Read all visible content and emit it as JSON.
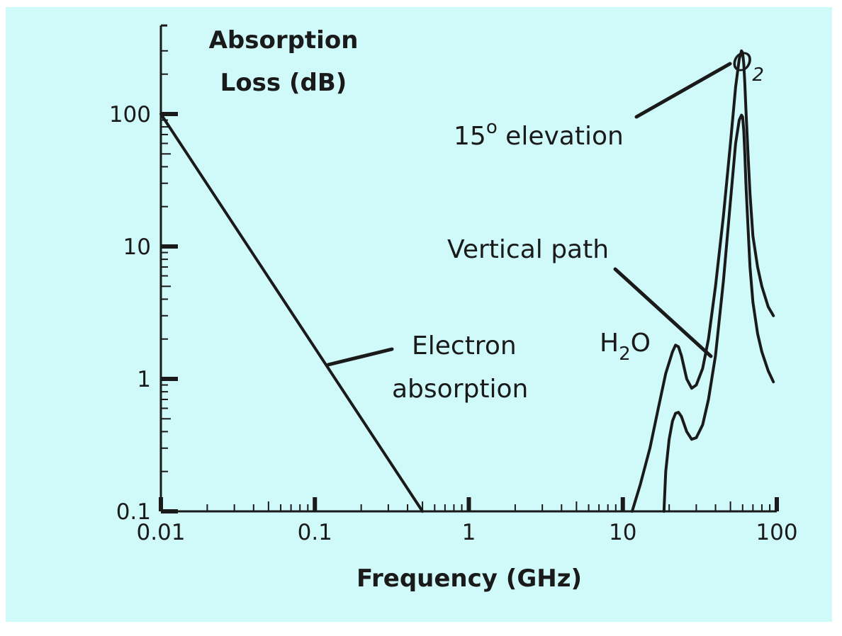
{
  "chart_data": {
    "type": "line",
    "title": "",
    "xlabel": "Frequency (GHz)",
    "ylabel_lines": [
      "Absorption",
      "Loss (dB)"
    ],
    "x_scale": "log",
    "y_scale": "log",
    "xlim": [
      0.01,
      100
    ],
    "ylim": [
      0.1,
      300
    ],
    "x_ticks": [
      {
        "value": 0.01,
        "label": "0.01"
      },
      {
        "value": 0.1,
        "label": "0.1"
      },
      {
        "value": 1,
        "label": "1"
      },
      {
        "value": 10,
        "label": "10"
      },
      {
        "value": 100,
        "label": "100"
      }
    ],
    "y_ticks": [
      {
        "value": 0.1,
        "label": "0.1"
      },
      {
        "value": 1,
        "label": "1"
      },
      {
        "value": 10,
        "label": "10"
      },
      {
        "value": 100,
        "label": "100"
      }
    ],
    "grid": false,
    "series": [
      {
        "key": "electron",
        "x": [
          0.01,
          0.5
        ],
        "y": [
          100,
          0.1
        ]
      },
      {
        "key": "elevation",
        "x": [
          11.5,
          13,
          15,
          17,
          19,
          21,
          22,
          23,
          24,
          26,
          28,
          30,
          33,
          36,
          40,
          45,
          50,
          54,
          57,
          59,
          60,
          61,
          62,
          63,
          65,
          67,
          70,
          75,
          80,
          88,
          95
        ],
        "y": [
          0.1,
          0.16,
          0.3,
          0.6,
          1.1,
          1.6,
          1.8,
          1.75,
          1.5,
          1.0,
          0.85,
          0.9,
          1.2,
          2.0,
          5.0,
          17,
          60,
          160,
          260,
          300,
          290,
          240,
          170,
          110,
          50,
          25,
          12,
          7,
          5,
          3.5,
          3.0
        ]
      },
      {
        "key": "vertical",
        "x": [
          18.5,
          19,
          20,
          21,
          22,
          23,
          24,
          26,
          28,
          30,
          33,
          36,
          40,
          45,
          50,
          54,
          57,
          59,
          60,
          61,
          62,
          63,
          65,
          67,
          70,
          75,
          80,
          88,
          95
        ],
        "y": [
          0.1,
          0.2,
          0.35,
          0.48,
          0.55,
          0.56,
          0.52,
          0.4,
          0.35,
          0.36,
          0.45,
          0.7,
          1.5,
          5.5,
          22,
          60,
          90,
          98,
          95,
          75,
          50,
          30,
          14,
          7,
          3.8,
          2.2,
          1.6,
          1.15,
          0.95
        ]
      }
    ],
    "annotations": {
      "o2_main": "O",
      "o2_sub": "2",
      "elevation_main": "15",
      "elevation_sup": "o",
      "elevation_rest": " elevation",
      "vertical": "Vertical path",
      "h2o_h": "H",
      "h2o_sub": "2",
      "h2o_o": "O",
      "electron_line1": "Electron",
      "electron_line2": "absorption"
    }
  }
}
